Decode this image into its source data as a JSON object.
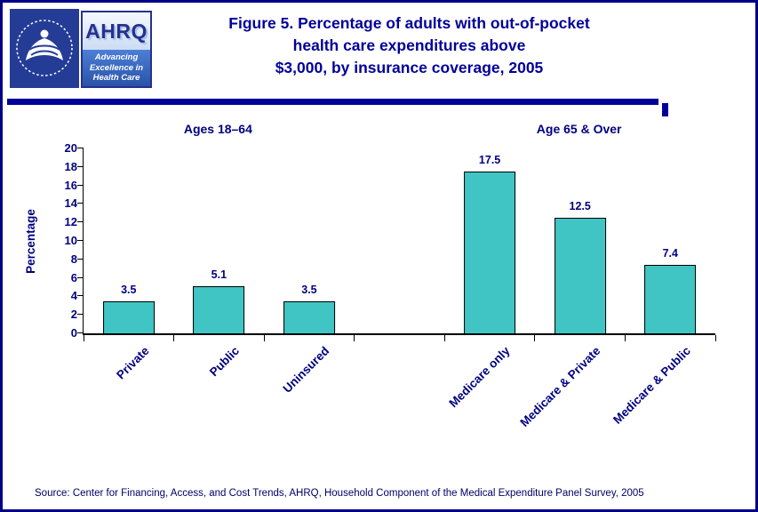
{
  "header": {
    "title_line1": "Figure 5. Percentage of adults with out-of-pocket",
    "title_line2": "health care expenditures above",
    "title_line3": "$3,000, by insurance coverage, 2005",
    "ahrq": {
      "acronym": "AHRQ",
      "tagline_line1": "Advancing",
      "tagline_line2": "Excellence in",
      "tagline_line3": "Health Care"
    }
  },
  "colors": {
    "title_navy": "#000099",
    "text_navy": "#000080",
    "bar_teal": "#40C4C4"
  },
  "chart_data": {
    "type": "bar",
    "title": "Percentage of adults with out-of-pocket health care expenditures above $3,000, by insurance coverage, 2005",
    "xlabel": "",
    "ylabel": "Percentage",
    "ylim": [
      0,
      20
    ],
    "ytick_step": 2,
    "grid": false,
    "legend": false,
    "bar_color": "#40C4C4",
    "groups": [
      {
        "label": "Ages 18–64",
        "categories": [
          "Private",
          "Public",
          "Uninsured"
        ],
        "values": [
          3.5,
          5.1,
          3.5
        ]
      },
      {
        "label": "Age 65 & Over",
        "categories": [
          "Medicare only",
          "Medicare & Private",
          "Medicare & Public"
        ],
        "values": [
          17.5,
          12.5,
          7.4
        ]
      }
    ]
  },
  "footer": {
    "source": "Source: Center for Financing, Access, and Cost Trends, AHRQ, Household Component of the Medical Expenditure Panel Survey, 2005"
  }
}
